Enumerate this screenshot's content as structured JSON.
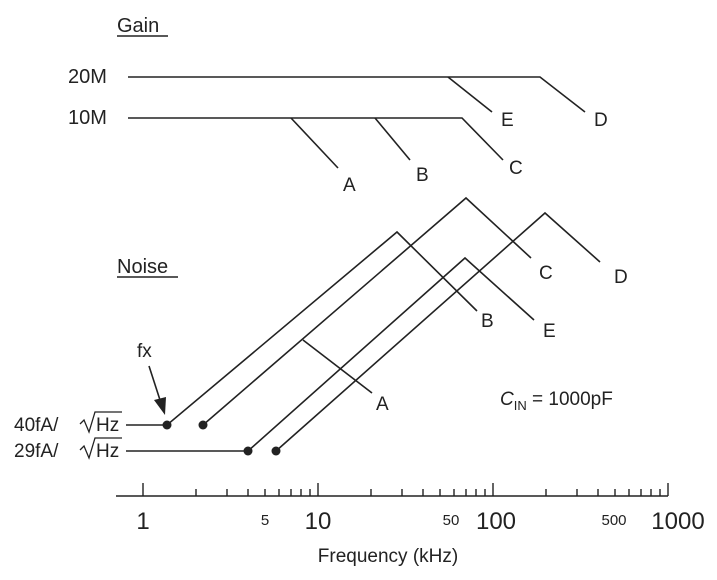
{
  "gain_section": {
    "title": "Gain",
    "levels": [
      "20M",
      "10M"
    ]
  },
  "noise_section": {
    "title": "Noise",
    "levels": [
      "40fA/",
      "29fA/"
    ],
    "sqrt_unit": "Hz",
    "fx_label": "fx"
  },
  "curve_labels": {
    "gain": [
      "A",
      "B",
      "C",
      "D",
      "E"
    ],
    "noise": [
      "A",
      "B",
      "C",
      "D",
      "E"
    ]
  },
  "condition": {
    "symbol": "C",
    "subscript": "IN",
    "value": " = 1000pF"
  },
  "axis": {
    "label": "Frequency (kHz)",
    "major_ticks": [
      "1",
      "10",
      "100",
      "1000"
    ],
    "minor_ticks": [
      "5",
      "50",
      "500"
    ]
  }
}
